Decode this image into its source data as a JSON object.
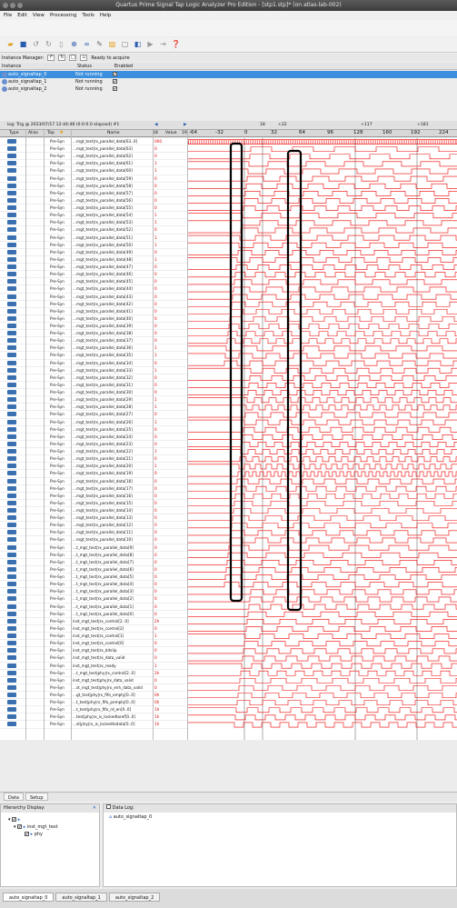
{
  "window": {
    "title": "Quartus Prime Signal Tap Logic Analyzer Pro Edition - [stp1.stp]* (on atlas-lab-002)"
  },
  "menu": [
    "File",
    "Edit",
    "View",
    "Processing",
    "Tools",
    "Help"
  ],
  "instance_manager": {
    "label": "Instance Manager:",
    "status": "Ready to acquire"
  },
  "instance_table": {
    "headers": [
      "Instance",
      "Status",
      "Enabled"
    ],
    "rows": [
      {
        "name": "auto_signaltap_0",
        "status": "Not running",
        "enabled": "✔"
      },
      {
        "name": "auto_signaltap_1",
        "status": "Not running",
        "enabled": "✔"
      },
      {
        "name": "auto_signaltap_2",
        "status": "Not running",
        "enabled": "✔"
      }
    ]
  },
  "waveform": {
    "trigger_info": "log: Trig @ 2023/07/17 12:44:48 (0:0:0.0 elapsed) #1",
    "marker_labels": [
      "18",
      "+22",
      "+117",
      "+181"
    ],
    "header": {
      "type": "Type",
      "alias": "Alias",
      "tap": "Tap",
      "name": "Name",
      "value": "Value",
      "vmin": "18",
      "vmax": "19"
    },
    "ticks": [
      "-64",
      "-32",
      "0",
      "32",
      "64",
      "96",
      "128",
      "160",
      "192",
      "224"
    ]
  },
  "signals": [
    {
      "tap": "Pre-Syn",
      "name": "...mgt_test|rx_parallel_data[63..0]",
      "value": "000"
    },
    {
      "tap": "Pre-Syn",
      "name": "...mgt_test|rx_parallel_data[63]",
      "value": "0"
    },
    {
      "tap": "Pre-Syn",
      "name": "...mgt_test|rx_parallel_data[62]",
      "value": "0"
    },
    {
      "tap": "Pre-Syn",
      "name": "...mgt_test|rx_parallel_data[61]",
      "value": "1"
    },
    {
      "tap": "Pre-Syn",
      "name": "...mgt_test|rx_parallel_data[60]",
      "value": "1"
    },
    {
      "tap": "Pre-Syn",
      "name": "...mgt_test|rx_parallel_data[59]",
      "value": "0"
    },
    {
      "tap": "Pre-Syn",
      "name": "...mgt_test|rx_parallel_data[58]",
      "value": "0"
    },
    {
      "tap": "Pre-Syn",
      "name": "...mgt_test|rx_parallel_data[57]",
      "value": "0"
    },
    {
      "tap": "Pre-Syn",
      "name": "...mgt_test|rx_parallel_data[56]",
      "value": "0"
    },
    {
      "tap": "Pre-Syn",
      "name": "...mgt_test|rx_parallel_data[55]",
      "value": "0"
    },
    {
      "tap": "Pre-Syn",
      "name": "...mgt_test|rx_parallel_data[54]",
      "value": "1"
    },
    {
      "tap": "Pre-Syn",
      "name": "...mgt_test|rx_parallel_data[53]",
      "value": "1"
    },
    {
      "tap": "Pre-Syn",
      "name": "...mgt_test|rx_parallel_data[52]",
      "value": "0"
    },
    {
      "tap": "Pre-Syn",
      "name": "...mgt_test|rx_parallel_data[51]",
      "value": "1"
    },
    {
      "tap": "Pre-Syn",
      "name": "...mgt_test|rx_parallel_data[50]",
      "value": "1"
    },
    {
      "tap": "Pre-Syn",
      "name": "...mgt_test|rx_parallel_data[49]",
      "value": "0"
    },
    {
      "tap": "Pre-Syn",
      "name": "...mgt_test|rx_parallel_data[48]",
      "value": "1"
    },
    {
      "tap": "Pre-Syn",
      "name": "...mgt_test|rx_parallel_data[47]",
      "value": "0"
    },
    {
      "tap": "Pre-Syn",
      "name": "...mgt_test|rx_parallel_data[46]",
      "value": "0"
    },
    {
      "tap": "Pre-Syn",
      "name": "...mgt_test|rx_parallel_data[45]",
      "value": "0"
    },
    {
      "tap": "Pre-Syn",
      "name": "...mgt_test|rx_parallel_data[44]",
      "value": "0"
    },
    {
      "tap": "Pre-Syn",
      "name": "...mgt_test|rx_parallel_data[43]",
      "value": "0"
    },
    {
      "tap": "Pre-Syn",
      "name": "...mgt_test|rx_parallel_data[42]",
      "value": "0"
    },
    {
      "tap": "Pre-Syn",
      "name": "...mgt_test|rx_parallel_data[41]",
      "value": "0"
    },
    {
      "tap": "Pre-Syn",
      "name": "...mgt_test|rx_parallel_data[40]",
      "value": "0"
    },
    {
      "tap": "Pre-Syn",
      "name": "...mgt_test|rx_parallel_data[39]",
      "value": "0"
    },
    {
      "tap": "Pre-Syn",
      "name": "...mgt_test|rx_parallel_data[38]",
      "value": "0"
    },
    {
      "tap": "Pre-Syn",
      "name": "...mgt_test|rx_parallel_data[37]",
      "value": "0"
    },
    {
      "tap": "Pre-Syn",
      "name": "...mgt_test|rx_parallel_data[36]",
      "value": "1"
    },
    {
      "tap": "Pre-Syn",
      "name": "...mgt_test|rx_parallel_data[35]",
      "value": "1"
    },
    {
      "tap": "Pre-Syn",
      "name": "...mgt_test|rx_parallel_data[34]",
      "value": "0"
    },
    {
      "tap": "Pre-Syn",
      "name": "...mgt_test|rx_parallel_data[33]",
      "value": "1"
    },
    {
      "tap": "Pre-Syn",
      "name": "...mgt_test|rx_parallel_data[32]",
      "value": "0"
    },
    {
      "tap": "Pre-Syn",
      "name": "...mgt_test|rx_parallel_data[31]",
      "value": "0"
    },
    {
      "tap": "Pre-Syn",
      "name": "...mgt_test|rx_parallel_data[30]",
      "value": "0"
    },
    {
      "tap": "Pre-Syn",
      "name": "...mgt_test|rx_parallel_data[29]",
      "value": "1"
    },
    {
      "tap": "Pre-Syn",
      "name": "...mgt_test|rx_parallel_data[28]",
      "value": "1"
    },
    {
      "tap": "Pre-Syn",
      "name": "...mgt_test|rx_parallel_data[27]",
      "value": "0"
    },
    {
      "tap": "Pre-Syn",
      "name": "...mgt_test|rx_parallel_data[26]",
      "value": "1"
    },
    {
      "tap": "Pre-Syn",
      "name": "...mgt_test|rx_parallel_data[25]",
      "value": "0"
    },
    {
      "tap": "Pre-Syn",
      "name": "...mgt_test|rx_parallel_data[24]",
      "value": "0"
    },
    {
      "tap": "Pre-Syn",
      "name": "...mgt_test|rx_parallel_data[23]",
      "value": "0"
    },
    {
      "tap": "Pre-Syn",
      "name": "...mgt_test|rx_parallel_data[22]",
      "value": "1"
    },
    {
      "tap": "Pre-Syn",
      "name": "...mgt_test|rx_parallel_data[21]",
      "value": "0"
    },
    {
      "tap": "Pre-Syn",
      "name": "...mgt_test|rx_parallel_data[20]",
      "value": "1"
    },
    {
      "tap": "Pre-Syn",
      "name": "...mgt_test|rx_parallel_data[19]",
      "value": "0"
    },
    {
      "tap": "Pre-Syn",
      "name": "...mgt_test|rx_parallel_data[18]",
      "value": "0"
    },
    {
      "tap": "Pre-Syn",
      "name": "...mgt_test|rx_parallel_data[17]",
      "value": "0"
    },
    {
      "tap": "Pre-Syn",
      "name": "...mgt_test|rx_parallel_data[16]",
      "value": "0"
    },
    {
      "tap": "Pre-Syn",
      "name": "...mgt_test|rx_parallel_data[15]",
      "value": "0"
    },
    {
      "tap": "Pre-Syn",
      "name": "...mgt_test|rx_parallel_data[14]",
      "value": "0"
    },
    {
      "tap": "Pre-Syn",
      "name": "...mgt_test|rx_parallel_data[13]",
      "value": "0"
    },
    {
      "tap": "Pre-Syn",
      "name": "...mgt_test|rx_parallel_data[12]",
      "value": "0"
    },
    {
      "tap": "Pre-Syn",
      "name": "...mgt_test|rx_parallel_data[11]",
      "value": "0"
    },
    {
      "tap": "Pre-Syn",
      "name": "...mgt_test|rx_parallel_data[10]",
      "value": "0"
    },
    {
      "tap": "Pre-Syn",
      "name": "...t_mgt_test|rx_parallel_data[9]",
      "value": "0"
    },
    {
      "tap": "Pre-Syn",
      "name": "...t_mgt_test|rx_parallel_data[8]",
      "value": "0"
    },
    {
      "tap": "Pre-Syn",
      "name": "...t_mgt_test|rx_parallel_data[7]",
      "value": "0"
    },
    {
      "tap": "Pre-Syn",
      "name": "...t_mgt_test|rx_parallel_data[6]",
      "value": "0"
    },
    {
      "tap": "Pre-Syn",
      "name": "...t_mgt_test|rx_parallel_data[5]",
      "value": "0"
    },
    {
      "tap": "Pre-Syn",
      "name": "...t_mgt_test|rx_parallel_data[4]",
      "value": "0"
    },
    {
      "tap": "Pre-Syn",
      "name": "...t_mgt_test|rx_parallel_data[3]",
      "value": "0"
    },
    {
      "tap": "Pre-Syn",
      "name": "...t_mgt_test|rx_parallel_data[2]",
      "value": "0"
    },
    {
      "tap": "Pre-Syn",
      "name": "...t_mgt_test|rx_parallel_data[1]",
      "value": "0"
    },
    {
      "tap": "Pre-Syn",
      "name": "...t_mgt_test|rx_parallel_data[0]",
      "value": "0"
    },
    {
      "tap": "Pre-Syn",
      "name": "inst_mgt_test|rx_control[2..0]",
      "value": "2h"
    },
    {
      "tap": "Pre-Syn",
      "name": "inst_mgt_test|rx_control[2]",
      "value": "0"
    },
    {
      "tap": "Pre-Syn",
      "name": "inst_mgt_test|rx_control[1]",
      "value": "1"
    },
    {
      "tap": "Pre-Syn",
      "name": "inst_mgt_test|rx_control[0]",
      "value": "0"
    },
    {
      "tap": "Pre-Syn",
      "name": "inst_mgt_test|rx_bitslip",
      "value": "0"
    },
    {
      "tap": "Pre-Syn",
      "name": "inst_mgt_test|rx_data_valid",
      "value": "0"
    },
    {
      "tap": "Pre-Syn",
      "name": "inst_mgt_test|rx_ready",
      "value": "1"
    },
    {
      "tap": "Pre-Syn",
      "name": "...t_mgt_test|phy|rx_control[2..0]",
      "value": "2h"
    },
    {
      "tap": "Pre-Syn",
      "name": "inst_mgt_test|phy|rx_data_valid",
      "value": "0"
    },
    {
      "tap": "Pre-Syn",
      "name": "...st_mgt_test|phy|rx_enh_data_valid",
      "value": "0"
    },
    {
      "tap": "Pre-Syn",
      "name": "...gt_test|phy|rx_fifo_empty[0..0]",
      "value": "0h"
    },
    {
      "tap": "Pre-Syn",
      "name": "...t_test|phy|rx_fifo_pempty[0..0]",
      "value": "0h"
    },
    {
      "tap": "Pre-Syn",
      "name": "...t_test|phy|rx_fifo_rd_en[0..0]",
      "value": "1h"
    },
    {
      "tap": "Pre-Syn",
      "name": "...test|phy|rx_is_lockedtoref[0..0]",
      "value": "1h"
    },
    {
      "tap": "Pre-Syn",
      "name": "...st|phy|rx_is_lockedtodata[0..0]",
      "value": "1h"
    }
  ],
  "bottom_tabs": [
    "Data",
    "Setup"
  ],
  "hierarchy": {
    "title": "Hierarchy Display:",
    "items": [
      "inst_mgt_test",
      "phy"
    ]
  },
  "data_log": {
    "title": "Data Log:",
    "items": [
      "auto_signaltap_0"
    ]
  },
  "status_tabs": [
    "auto_signaltap_0",
    "auto_signaltap_1",
    "auto_signaltap_2"
  ]
}
